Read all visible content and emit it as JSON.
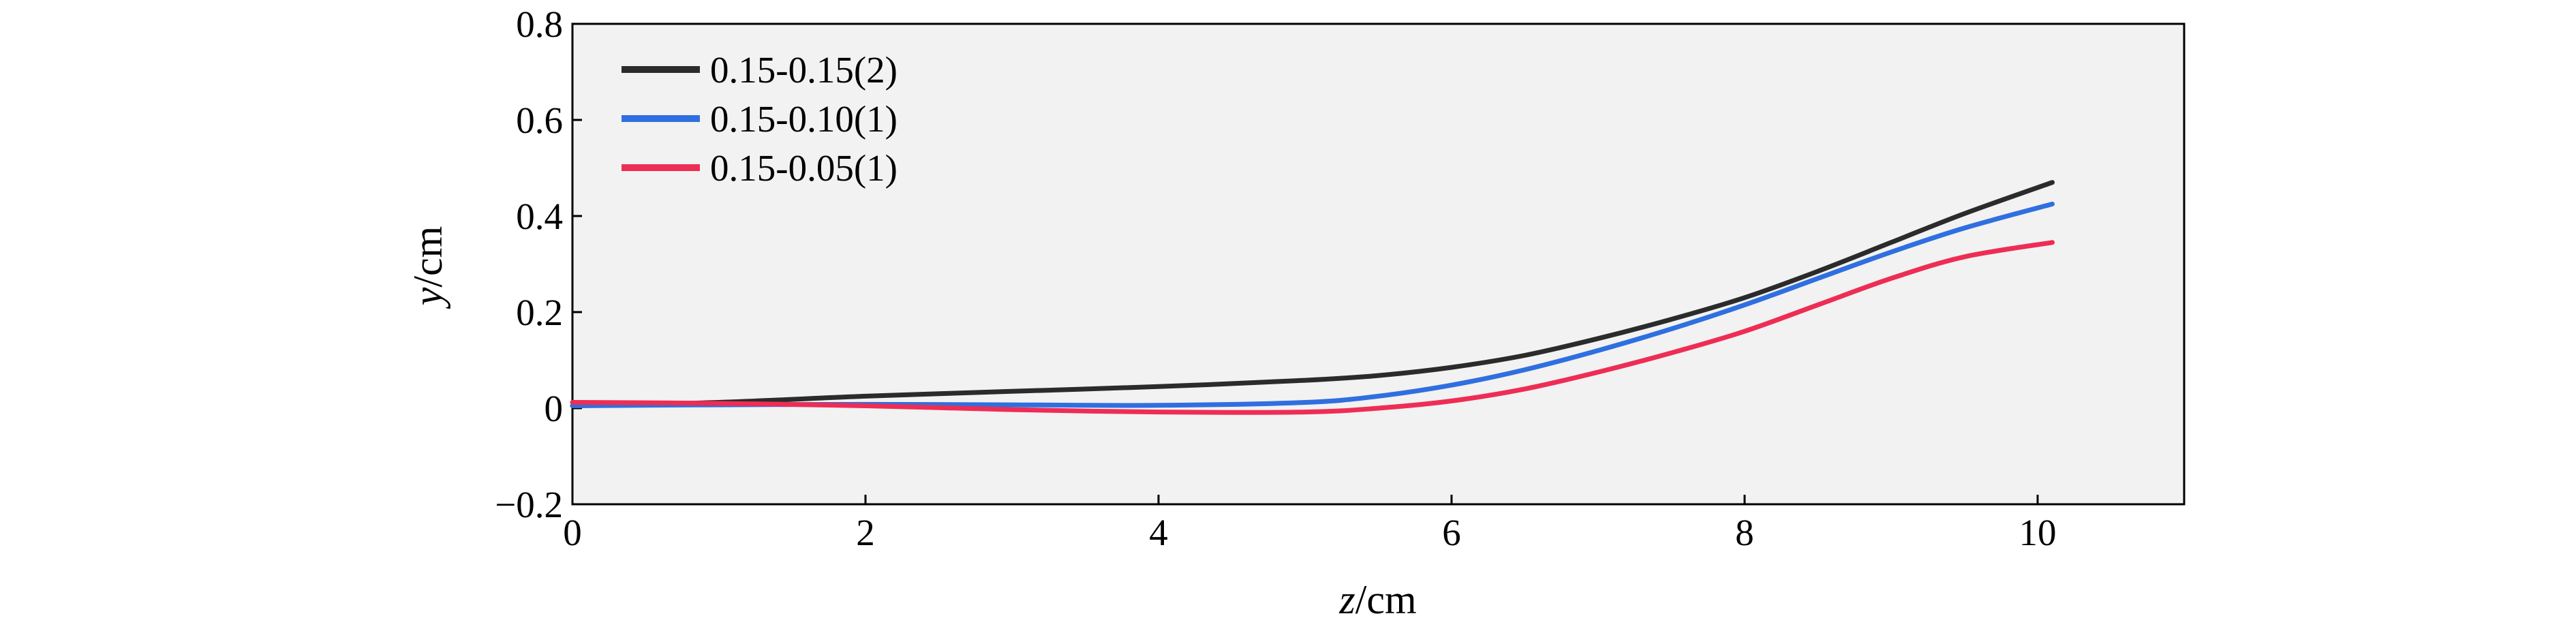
{
  "chart_data": {
    "type": "line",
    "xlabel": {
      "var": "z",
      "unit": "/cm"
    },
    "ylabel": {
      "var": "y",
      "unit": "/cm"
    },
    "xlim": [
      0,
      11
    ],
    "ylim": [
      -0.2,
      0.8
    ],
    "x_ticks": [
      0,
      2,
      4,
      6,
      8,
      10
    ],
    "y_ticks": [
      -0.2,
      0,
      0.2,
      0.4,
      0.6,
      0.8
    ],
    "x_tick_labels": [
      "0",
      "2",
      "4",
      "6",
      "8",
      "10"
    ],
    "y_tick_labels": [
      "−0.2",
      "0",
      "0.2",
      "0.4",
      "0.6",
      "0.8"
    ],
    "grid": false,
    "legend_position": "top-left",
    "plot_background": "#f2f2f2",
    "series": [
      {
        "name": "0.15-0.15(2)",
        "color": "#2b2b2b",
        "x": [
          0,
          1,
          2,
          3,
          4,
          5,
          5.5,
          6,
          6.5,
          7,
          7.5,
          8,
          8.5,
          9,
          9.5,
          10.1
        ],
        "y": [
          0.005,
          0.012,
          0.025,
          0.035,
          0.045,
          0.058,
          0.068,
          0.085,
          0.11,
          0.145,
          0.185,
          0.23,
          0.285,
          0.345,
          0.405,
          0.47
        ]
      },
      {
        "name": "0.15-0.10(1)",
        "color": "#2f6fe0",
        "x": [
          0,
          1,
          2,
          3,
          4,
          5,
          5.5,
          6,
          6.5,
          7,
          7.5,
          8,
          8.5,
          9,
          9.5,
          10.1
        ],
        "y": [
          0.005,
          0.007,
          0.008,
          0.007,
          0.006,
          0.012,
          0.025,
          0.048,
          0.08,
          0.12,
          0.165,
          0.215,
          0.27,
          0.325,
          0.375,
          0.425
        ]
      },
      {
        "name": "0.15-0.05(1)",
        "color": "#ee2d55",
        "x": [
          0,
          1,
          2,
          3,
          4,
          5,
          5.5,
          6,
          6.5,
          7,
          7.5,
          8,
          8.5,
          9,
          9.5,
          10.1
        ],
        "y": [
          0.012,
          0.01,
          0.005,
          -0.003,
          -0.008,
          -0.008,
          0.0,
          0.015,
          0.04,
          0.075,
          0.115,
          0.16,
          0.215,
          0.27,
          0.315,
          0.345
        ]
      }
    ]
  }
}
